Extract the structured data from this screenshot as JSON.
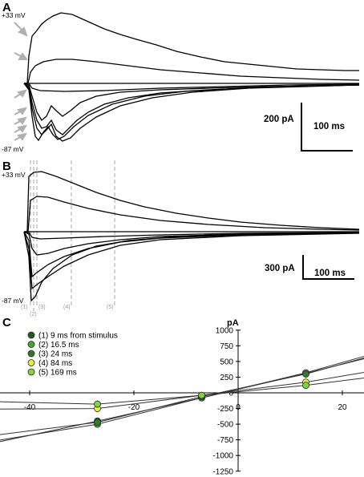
{
  "panelA": {
    "label": "A",
    "v_top": "+33 mV",
    "v_bottom": "-87 mV",
    "scale_current": "200 pA",
    "scale_time": "100 ms"
  },
  "panelB": {
    "label": "B",
    "v_top": "+33 mV",
    "v_bottom": "-87 mV",
    "scale_current": "300 pA",
    "scale_time": "100 ms",
    "markers": [
      "(1)",
      "(2)",
      "(3)",
      "(4)",
      "(5)"
    ]
  },
  "panelC": {
    "label": "C",
    "colors": [
      "#1f5a1f",
      "#3daa2c",
      "#2f7a2f",
      "#e2f03a",
      "#7fd43a"
    ]
  },
  "chart_data": {
    "type": "line",
    "xlabel": "mV",
    "ylabel": "pA",
    "xlim": [
      -90,
      40
    ],
    "ylim": [
      -1250,
      1000
    ],
    "xticks": [
      -80,
      -60,
      -40,
      -20,
      0,
      20,
      40
    ],
    "yticks": [
      -1250,
      -1000,
      -750,
      -500,
      -250,
      0,
      250,
      500,
      750,
      1000
    ],
    "x": [
      -87,
      -67,
      -47,
      -27,
      -7,
      13,
      33
    ],
    "series": [
      {
        "name": "(1) 9 ms from stimulus",
        "values": [
          -975,
          -850,
          -800,
          -450,
          -80,
          310,
          730
        ]
      },
      {
        "name": "(2) 16.5 ms",
        "values": [
          -560,
          -460,
          -770,
          -500,
          -80,
          320,
          790
        ]
      },
      {
        "name": "(3) 24 ms",
        "values": [
          -270,
          -260,
          -680,
          -470,
          -60,
          300,
          760
        ]
      },
      {
        "name": "(4) 84 ms",
        "values": [
          -20,
          -30,
          -260,
          -250,
          -40,
          170,
          450
        ]
      },
      {
        "name": "(5) 169 ms",
        "values": [
          -15,
          -20,
          -140,
          -180,
          -40,
          120,
          330
        ]
      }
    ]
  }
}
